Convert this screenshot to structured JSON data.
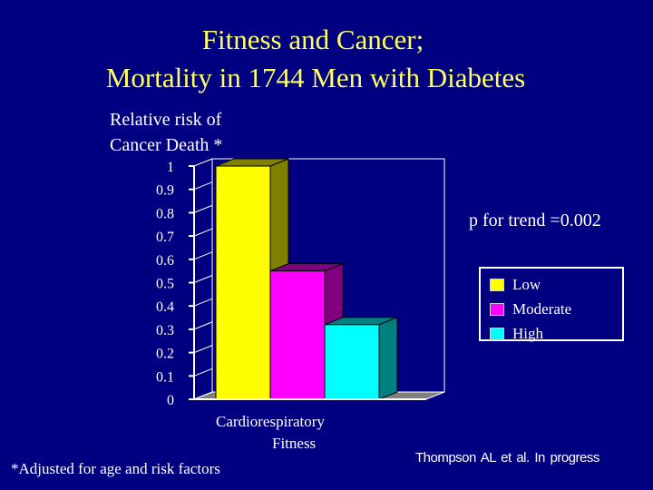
{
  "title": {
    "line1": "Fitness and Cancer;",
    "line2": "Mortality in 1744 Men with Diabetes"
  },
  "y_axis_label": {
    "line1": "Relative risk of",
    "line2": "Cancer Death *"
  },
  "x_axis_label": {
    "line1": "Cardiorespiratory",
    "line2": "Fitness"
  },
  "annotation": "p for trend =0.002",
  "footnote": "*Adjusted for age and risk factors",
  "citation": "Thompson AL et al.   In progress",
  "colors": {
    "background": "#000080",
    "title": "#ffff66",
    "low": "#ffff00",
    "moderate": "#ff00ff",
    "high": "#00ffff",
    "low_side": "#808000",
    "moderate_side": "#800080",
    "high_side": "#008080"
  },
  "chart_data": {
    "type": "bar",
    "style": "3d",
    "title": "Fitness and Cancer; Mortality in 1744 Men with Diabetes",
    "xlabel": "Cardiorespiratory Fitness",
    "ylabel": "Relative risk of Cancer Death *",
    "categories": [
      "Cardiorespiratory Fitness"
    ],
    "series": [
      {
        "name": "Low",
        "values": [
          1.0
        ]
      },
      {
        "name": "Moderate",
        "values": [
          0.55
        ]
      },
      {
        "name": "High",
        "values": [
          0.32
        ]
      }
    ],
    "ylim": [
      0,
      1
    ],
    "yticks": [
      "1",
      "0.9",
      "0.8",
      "0.7",
      "0.6",
      "0.5",
      "0.4",
      "0.3",
      "0.2",
      "0.1",
      "0"
    ],
    "legend": [
      "Low",
      "Moderate",
      "High"
    ],
    "legend_position": "right",
    "grid": false
  }
}
